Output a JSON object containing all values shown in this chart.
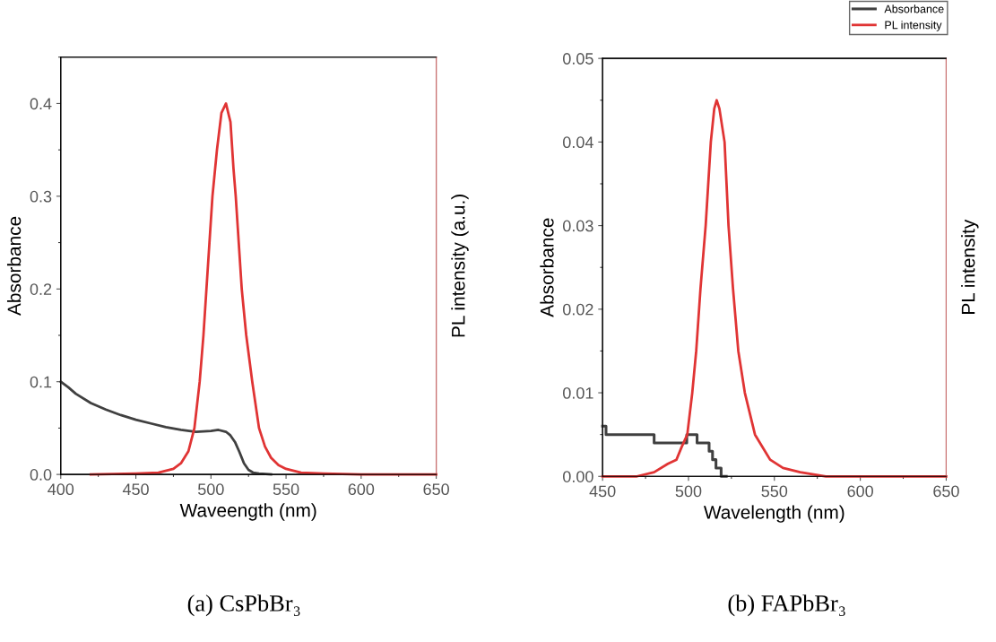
{
  "chart_data": [
    {
      "type": "line",
      "title": "(a) CsPbBr₃",
      "xlabel": "Waveength (nm)",
      "ylabel": "Absorbance",
      "y2label": "PL intensity (a.u.)",
      "xlim": [
        400,
        650
      ],
      "xticks": [
        400,
        450,
        500,
        550,
        600,
        650
      ],
      "ylim": [
        0,
        0.45
      ],
      "yticks": [
        {
          "value": 0,
          "label": "0.0"
        },
        0.1,
        0.2,
        0.3,
        0.4
      ],
      "grid": false,
      "legend": false,
      "series": [
        {
          "type": "line",
          "color": "#404040",
          "x": [
            400,
            405,
            410,
            420,
            430,
            440,
            450,
            460,
            470,
            480,
            490,
            500,
            505,
            510,
            513,
            516,
            519,
            522,
            525,
            528,
            532,
            540
          ],
          "values": [
            0.1,
            0.094,
            0.087,
            0.077,
            0.07,
            0.064,
            0.059,
            0.055,
            0.051,
            0.048,
            0.046,
            0.047,
            0.048,
            0.046,
            0.042,
            0.035,
            0.024,
            0.012,
            0.005,
            0.002,
            0.001,
            0
          ]
        },
        {
          "type": "line",
          "color": "#e03434",
          "x": [
            420,
            450,
            465,
            475,
            480,
            485,
            489,
            492.5,
            495,
            497,
            499,
            501,
            504,
            507,
            510,
            513,
            515,
            516.5,
            518.5,
            520.5,
            523.5,
            527.5,
            532,
            536,
            540,
            545,
            550,
            560,
            575,
            600,
            650
          ],
          "values": [
            0,
            0.001,
            0.002,
            0.006,
            0.012,
            0.025,
            0.05,
            0.1,
            0.15,
            0.2,
            0.25,
            0.3,
            0.35,
            0.39,
            0.4,
            0.38,
            0.33,
            0.3,
            0.25,
            0.2,
            0.15,
            0.1,
            0.05,
            0.03,
            0.018,
            0.01,
            0.006,
            0.002,
            0.001,
            0,
            0
          ]
        }
      ]
    },
    {
      "type": "line",
      "title": "(b) FAPbBr₃",
      "xlabel": "Wavelength (nm)",
      "ylabel": "Absorbance",
      "y2label": "PL intensity",
      "xlim": [
        450,
        650
      ],
      "xticks": [
        450,
        500,
        550,
        600,
        650
      ],
      "ylim": [
        0,
        0.05
      ],
      "yticks": [
        {
          "value": 0,
          "label": "0.00"
        },
        0.01,
        0.02,
        0.03,
        0.04,
        0.05
      ],
      "grid": false,
      "legend": "top right",
      "series": [
        {
          "type": "step",
          "name": "Absorbance",
          "color": "#404040",
          "x": [
            450,
            452,
            480,
            499,
            505,
            512,
            514,
            516,
            519,
            522
          ],
          "values": [
            0.006,
            0.005,
            0.004,
            0.005,
            0.004,
            0.003,
            0.002,
            0.001,
            0,
            0
          ]
        },
        {
          "type": "line",
          "name": "PL intensity",
          "color": "#e03434",
          "x": [
            450,
            470,
            480,
            488,
            493,
            496,
            499.3,
            502.2,
            504.5,
            507,
            510,
            513,
            515,
            516.4,
            518,
            521,
            523.3,
            525.9,
            529,
            532.8,
            538.7,
            547.5,
            555,
            565,
            580,
            600,
            650
          ],
          "values": [
            0,
            0,
            0.0005,
            0.0015,
            0.002,
            0.0035,
            0.005,
            0.01,
            0.015,
            0.0225,
            0.03,
            0.04,
            0.044,
            0.045,
            0.044,
            0.04,
            0.03,
            0.0225,
            0.015,
            0.01,
            0.005,
            0.002,
            0.001,
            0.0005,
            0,
            0,
            0
          ]
        }
      ]
    }
  ]
}
